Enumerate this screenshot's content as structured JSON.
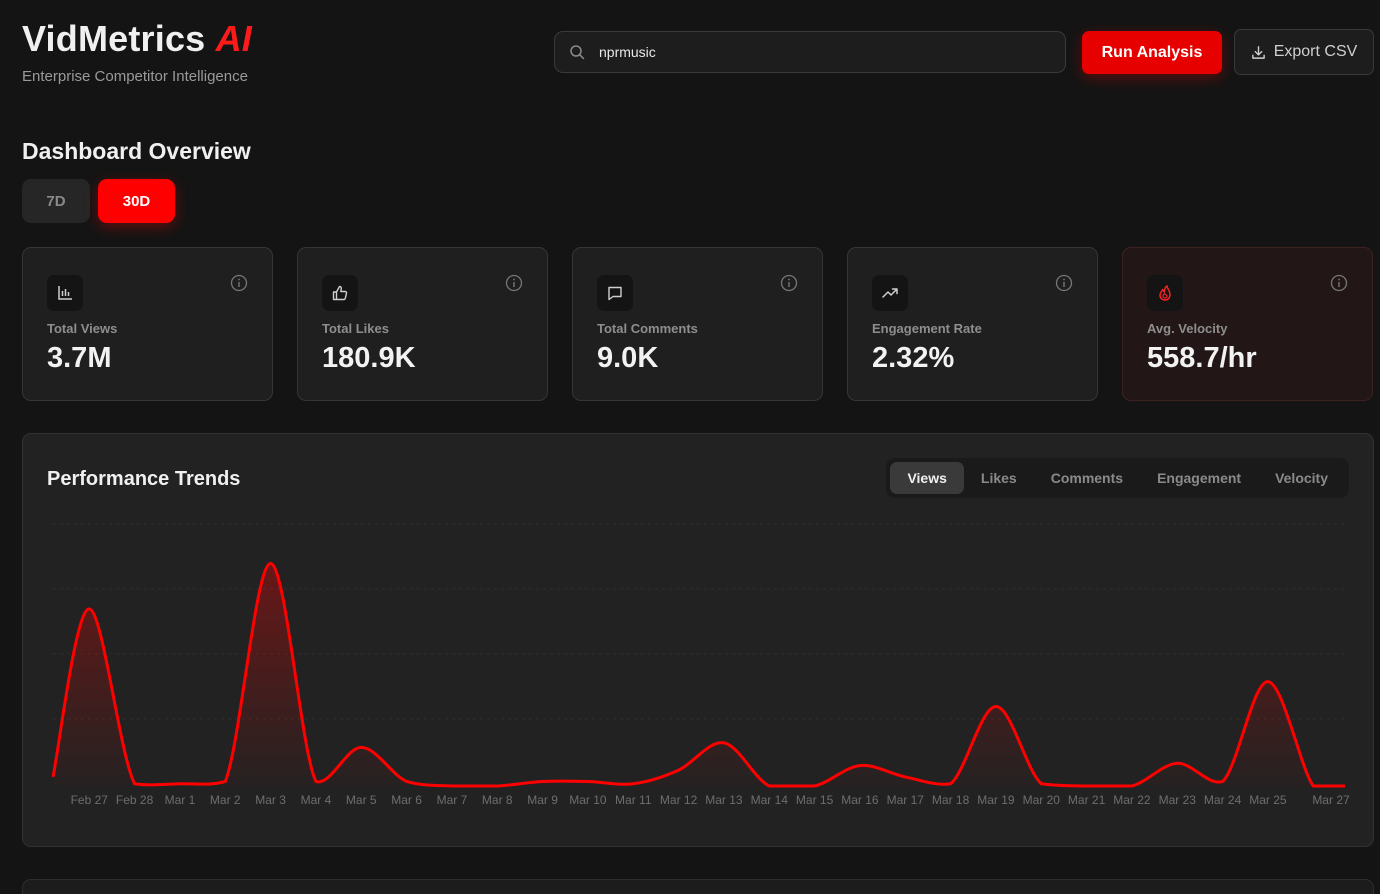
{
  "brand": {
    "name": "VidMetrics",
    "accent": "AI",
    "subtitle": "Enterprise Competitor Intelligence"
  },
  "search": {
    "value": "nprmusic",
    "icon": "search-icon"
  },
  "actions": {
    "run_label": "Run Analysis",
    "export_label": "Export CSV"
  },
  "dashboard": {
    "title": "Dashboard Overview",
    "ranges": [
      "7D",
      "30D"
    ],
    "active_range": "30D"
  },
  "metrics": [
    {
      "label": "Total Views",
      "value": "3.7M",
      "icon": "bar-chart-icon"
    },
    {
      "label": "Total Likes",
      "value": "180.9K",
      "icon": "thumbs-up-icon"
    },
    {
      "label": "Total Comments",
      "value": "9.0K",
      "icon": "comment-icon"
    },
    {
      "label": "Engagement Rate",
      "value": "2.32%",
      "icon": "trending-up-icon"
    },
    {
      "label": "Avg. Velocity",
      "value": "558.7/hr",
      "icon": "flame-icon"
    }
  ],
  "trends": {
    "title": "Performance Trends",
    "tabs": [
      "Views",
      "Likes",
      "Comments",
      "Engagement",
      "Velocity"
    ],
    "active_tab": "Views"
  },
  "colors": {
    "accent": "#ff0000",
    "background": "#141414",
    "card": "#1f1f1f"
  },
  "chart_data": {
    "type": "area",
    "categories": [
      "Feb 27",
      "Feb 28",
      "Mar 1",
      "Mar 2",
      "Mar 3",
      "Mar 4",
      "Mar 5",
      "Mar 6",
      "Mar 7",
      "Mar 8",
      "Mar 9",
      "Mar 10",
      "Mar 11",
      "Mar 12",
      "Mar 13",
      "Mar 14",
      "Mar 15",
      "Mar 16",
      "Mar 17",
      "Mar 18",
      "Mar 19",
      "Mar 20",
      "Mar 21",
      "Mar 22",
      "Mar 23",
      "Mar 24",
      "Mar 25",
      "Mar 27"
    ],
    "series": [
      {
        "values": [
          0.78,
          0.01,
          0.01,
          0.02,
          0.98,
          0.02,
          0.17,
          0.02,
          0.0,
          0.0,
          0.02,
          0.02,
          0.01,
          0.07,
          0.19,
          0.0,
          0.0,
          0.09,
          0.04,
          0.01,
          0.35,
          0.01,
          0.0,
          0.0,
          0.1,
          0.02,
          0.46,
          0.0
        ]
      }
    ],
    "color": "#ff0000",
    "grid": true
  }
}
